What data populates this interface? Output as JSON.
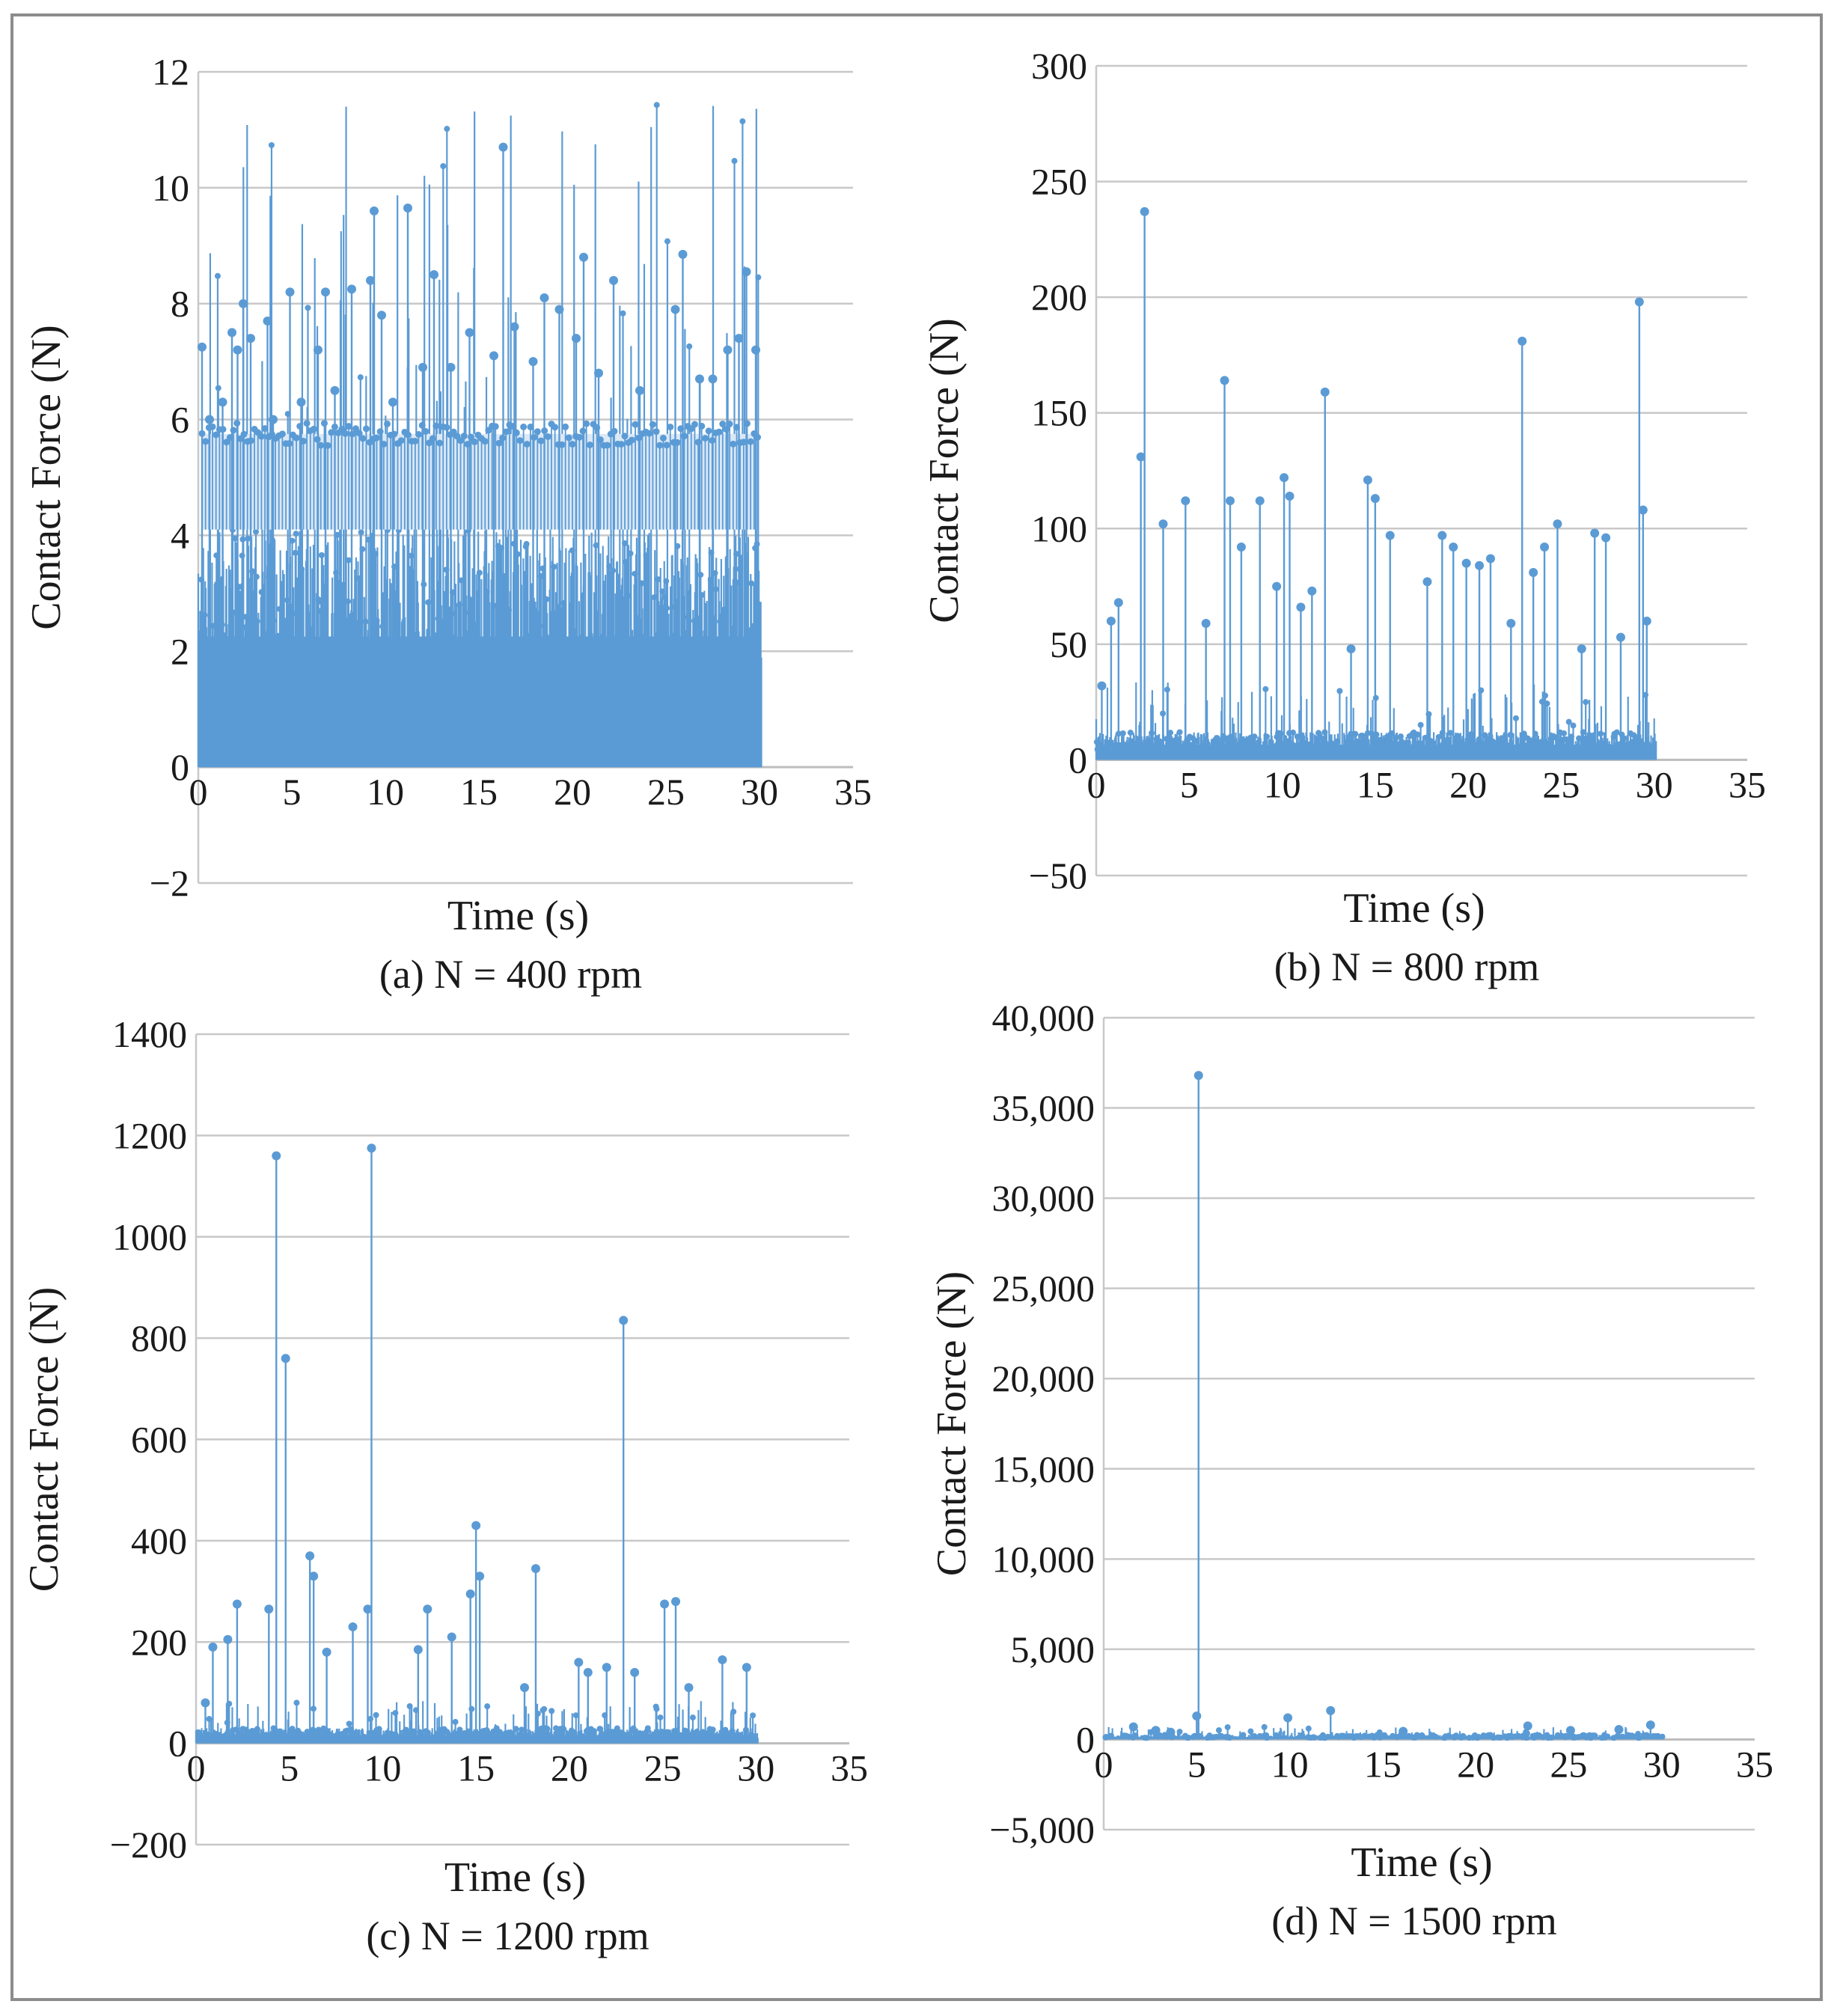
{
  "series_color": "#5b9bd5",
  "grid_color": "#c8c8c8",
  "chart_data": [
    {
      "type": "scatter",
      "id": "a",
      "caption": "(a) N = 400 rpm",
      "xlabel": "Time (s)",
      "ylabel": "Contact Force (N)",
      "xlim": [
        0,
        35
      ],
      "ylim": [
        -2,
        12
      ],
      "xticks": [
        0,
        5,
        10,
        15,
        20,
        25,
        30,
        35
      ],
      "yticks": [
        -2,
        0,
        2,
        4,
        6,
        8,
        10,
        12
      ],
      "ytick_labels": [
        "−2",
        "0",
        "2",
        "4",
        "6",
        "8",
        "10",
        "12"
      ],
      "dense_band": 4.1,
      "baseline_level": 5.75,
      "peaks": [
        [
          0.2,
          7.25
        ],
        [
          0.6,
          6.0
        ],
        [
          1.3,
          6.3
        ],
        [
          1.8,
          7.5
        ],
        [
          2.1,
          7.2
        ],
        [
          2.4,
          8.0
        ],
        [
          2.8,
          7.4
        ],
        [
          3.7,
          7.7
        ],
        [
          4.0,
          6.0
        ],
        [
          4.9,
          8.2
        ],
        [
          5.5,
          6.3
        ],
        [
          6.4,
          7.2
        ],
        [
          6.8,
          8.2
        ],
        [
          7.3,
          6.5
        ],
        [
          8.2,
          8.25
        ],
        [
          9.2,
          8.4
        ],
        [
          9.4,
          9.6
        ],
        [
          9.8,
          7.8
        ],
        [
          10.4,
          6.3
        ],
        [
          11.2,
          9.65
        ],
        [
          12.0,
          6.9
        ],
        [
          12.6,
          8.5
        ],
        [
          13.5,
          6.9
        ],
        [
          14.5,
          7.5
        ],
        [
          15.8,
          7.1
        ],
        [
          16.3,
          10.7
        ],
        [
          16.9,
          7.6
        ],
        [
          17.9,
          7.0
        ],
        [
          18.5,
          8.1
        ],
        [
          19.3,
          7.9
        ],
        [
          20.2,
          7.4
        ],
        [
          20.6,
          8.8
        ],
        [
          21.4,
          6.8
        ],
        [
          22.2,
          8.4
        ],
        [
          23.6,
          6.5
        ],
        [
          25.5,
          7.9
        ],
        [
          25.9,
          8.85
        ],
        [
          26.8,
          6.7
        ],
        [
          27.5,
          6.7
        ],
        [
          28.3,
          7.2
        ],
        [
          28.9,
          7.4
        ],
        [
          29.3,
          8.55
        ],
        [
          29.8,
          7.2
        ]
      ]
    },
    {
      "type": "scatter",
      "id": "b",
      "caption": "(b) N = 800 rpm",
      "xlabel": "Time (s)",
      "ylabel": "Contact Force (N)",
      "xlim": [
        0,
        35
      ],
      "ylim": [
        -50,
        300
      ],
      "xticks": [
        0,
        5,
        10,
        15,
        20,
        25,
        30,
        35
      ],
      "yticks": [
        -50,
        0,
        50,
        100,
        150,
        200,
        250,
        300
      ],
      "ytick_labels": [
        "−50",
        "0",
        "50",
        "100",
        "150",
        "200",
        "250",
        "300"
      ],
      "dense_band": 12,
      "peaks": [
        [
          0.3,
          32
        ],
        [
          0.8,
          60
        ],
        [
          1.2,
          68
        ],
        [
          2.4,
          131
        ],
        [
          2.6,
          237
        ],
        [
          3.6,
          102
        ],
        [
          4.8,
          112
        ],
        [
          5.9,
          59
        ],
        [
          6.9,
          164
        ],
        [
          7.2,
          112
        ],
        [
          7.8,
          92
        ],
        [
          8.8,
          112
        ],
        [
          9.7,
          75
        ],
        [
          10.1,
          122
        ],
        [
          10.4,
          114
        ],
        [
          11.0,
          66
        ],
        [
          11.6,
          73
        ],
        [
          12.3,
          159
        ],
        [
          13.7,
          48
        ],
        [
          14.6,
          121
        ],
        [
          15.0,
          113
        ],
        [
          15.8,
          97
        ],
        [
          17.8,
          77
        ],
        [
          18.6,
          97
        ],
        [
          19.2,
          92
        ],
        [
          19.9,
          85
        ],
        [
          20.6,
          84
        ],
        [
          21.2,
          87
        ],
        [
          22.3,
          59
        ],
        [
          22.9,
          181
        ],
        [
          23.5,
          81
        ],
        [
          24.1,
          92
        ],
        [
          24.8,
          102
        ],
        [
          26.1,
          48
        ],
        [
          26.8,
          98
        ],
        [
          27.4,
          96
        ],
        [
          28.2,
          53
        ],
        [
          29.2,
          198
        ],
        [
          29.4,
          108
        ],
        [
          29.6,
          60
        ]
      ]
    },
    {
      "type": "scatter",
      "id": "c",
      "caption": "(c) N = 1200 rpm",
      "xlabel": "Time (s)",
      "ylabel": "Contact Force (N)",
      "xlim": [
        0,
        35
      ],
      "ylim": [
        -200,
        1400
      ],
      "xticks": [
        0,
        5,
        10,
        15,
        20,
        25,
        30,
        35
      ],
      "yticks": [
        -200,
        0,
        200,
        400,
        600,
        800,
        1000,
        1200,
        1400
      ],
      "ytick_labels": [
        "−200",
        "0",
        "200",
        "400",
        "600",
        "800",
        "1000",
        "1200",
        "1400"
      ],
      "dense_band": 30,
      "peaks": [
        [
          0.5,
          80
        ],
        [
          0.9,
          190
        ],
        [
          1.7,
          205
        ],
        [
          2.2,
          275
        ],
        [
          3.9,
          265
        ],
        [
          4.3,
          1160
        ],
        [
          4.8,
          760
        ],
        [
          6.1,
          370
        ],
        [
          6.3,
          330
        ],
        [
          7.0,
          180
        ],
        [
          8.4,
          230
        ],
        [
          9.2,
          265
        ],
        [
          9.4,
          1175
        ],
        [
          11.9,
          185
        ],
        [
          12.4,
          265
        ],
        [
          13.7,
          210
        ],
        [
          14.7,
          295
        ],
        [
          15.0,
          430
        ],
        [
          15.2,
          330
        ],
        [
          17.6,
          110
        ],
        [
          18.2,
          345
        ],
        [
          20.5,
          160
        ],
        [
          21.0,
          140
        ],
        [
          22.0,
          150
        ],
        [
          22.9,
          835
        ],
        [
          23.5,
          140
        ],
        [
          25.1,
          275
        ],
        [
          25.7,
          280
        ],
        [
          26.4,
          110
        ],
        [
          28.2,
          165
        ],
        [
          29.5,
          150
        ]
      ]
    },
    {
      "type": "scatter",
      "id": "d",
      "caption": "(d) N = 1500 rpm",
      "xlabel": "Time (s)",
      "ylabel": "Contact Force (N)",
      "xlim": [
        0,
        35
      ],
      "ylim": [
        -5000,
        40000
      ],
      "xticks": [
        0,
        5,
        10,
        15,
        20,
        25,
        30,
        35
      ],
      "yticks": [
        -5000,
        0,
        5000,
        10000,
        15000,
        20000,
        25000,
        30000,
        35000,
        40000
      ],
      "ytick_labels": [
        "−5,000",
        "0",
        "5,000",
        "10,000",
        "15,000",
        "20,000",
        "25,000",
        "30,000",
        "35,000",
        "40,000"
      ],
      "dense_band": 250,
      "peaks": [
        [
          1.6,
          700
        ],
        [
          2.8,
          500
        ],
        [
          3.6,
          400
        ],
        [
          5.0,
          1300
        ],
        [
          5.1,
          36800
        ],
        [
          9.9,
          1200
        ],
        [
          12.2,
          1600
        ],
        [
          16.1,
          450
        ],
        [
          22.8,
          750
        ],
        [
          25.1,
          500
        ],
        [
          27.7,
          550
        ],
        [
          29.4,
          800
        ]
      ]
    }
  ]
}
